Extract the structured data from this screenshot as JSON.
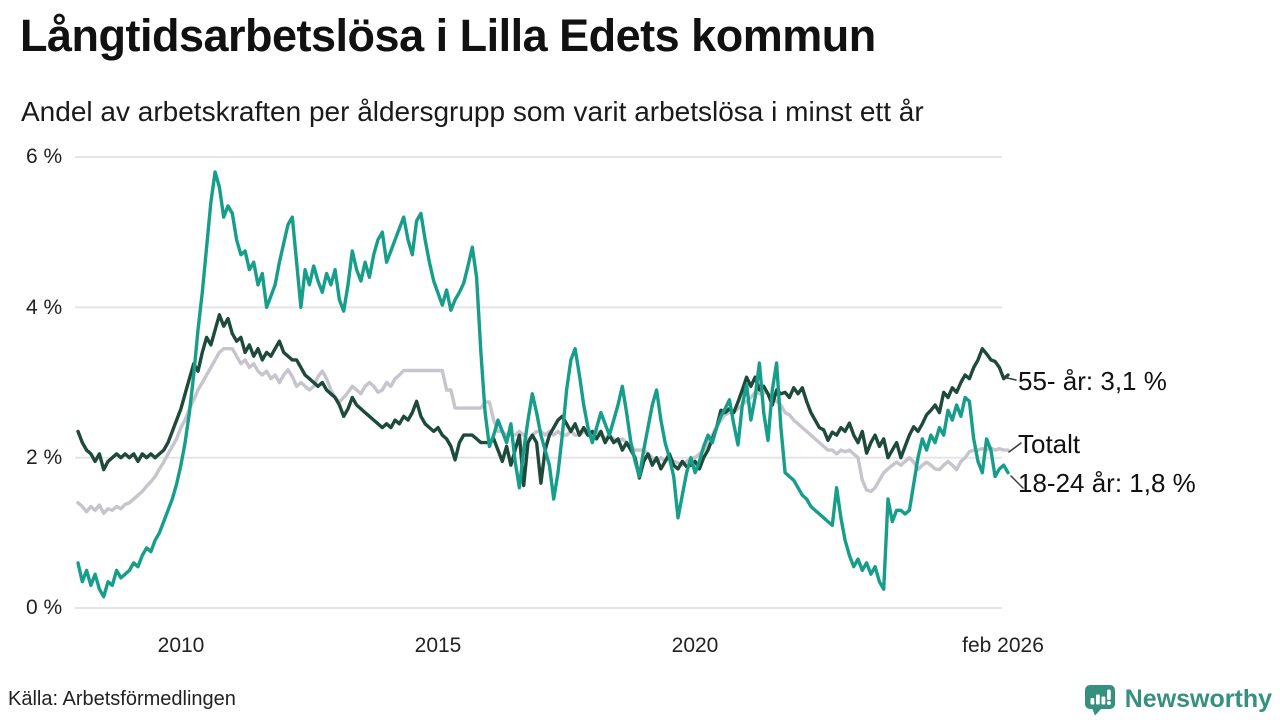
{
  "header": {
    "title": "Långtidsarbetslösa i Lilla Edets kommun",
    "subtitle": "Andel av arbetskraften per åldersgrupp som varit arbetslösa i minst ett år"
  },
  "footer": {
    "source": "Källa: Arbetsförmedlingen",
    "brand": "Newsworthy"
  },
  "colors": {
    "teal_18_24": "#179e8b",
    "dark_green_55": "#1e4a3c",
    "gray_totalt": "#c6c5ce",
    "brand_teal": "#35907f",
    "gridline": "#e3e3e3"
  },
  "chart_data": {
    "type": "line",
    "title": "Långtidsarbetslösa i Lilla Edets kommun",
    "subtitle": "Andel av arbetskraften per åldersgrupp som varit arbetslösa i minst ett år",
    "unit": "% av arbetskraften",
    "x_unit": "month",
    "x_range": [
      "2008-01",
      "2026-02"
    ],
    "ylim": [
      0,
      6
    ],
    "grid": "horizontal",
    "legend_position": "right-annotations",
    "y_gridline_values": [
      0,
      2,
      4,
      6
    ],
    "y_tick_labels": [
      "6 %",
      "4 %",
      "2 %",
      "0 %"
    ],
    "x_tick_labels": [
      "2010",
      "2015",
      "2020",
      "feb 2026"
    ],
    "annotations": [
      {
        "label": "55- år: 3,1 %"
      },
      {
        "label": "Totalt"
      },
      {
        "label": "18-24 år: 1,8 %"
      }
    ],
    "series": [
      {
        "id": "totalt",
        "name": "Totalt",
        "color": "#c6c5ce",
        "last_value": 2.1,
        "values": [
          1.4,
          1.35,
          1.28,
          1.35,
          1.3,
          1.37,
          1.26,
          1.32,
          1.3,
          1.35,
          1.32,
          1.38,
          1.4,
          1.45,
          1.5,
          1.55,
          1.62,
          1.68,
          1.75,
          1.85,
          1.94,
          2.05,
          2.15,
          2.25,
          2.4,
          2.5,
          2.65,
          2.77,
          2.9,
          3.0,
          3.1,
          3.2,
          3.3,
          3.4,
          3.45,
          3.45,
          3.45,
          3.35,
          3.25,
          3.3,
          3.2,
          3.25,
          3.15,
          3.1,
          3.15,
          3.05,
          3.1,
          3.0,
          3.1,
          3.17,
          3.08,
          2.95,
          3.0,
          2.95,
          2.9,
          2.95,
          3.08,
          3.15,
          3.05,
          2.9,
          2.8,
          2.74,
          2.8,
          2.87,
          2.95,
          2.9,
          2.85,
          2.95,
          3.0,
          2.95,
          2.87,
          2.9,
          3.0,
          2.95,
          3.05,
          3.1,
          3.16,
          3.16,
          3.16,
          3.16,
          3.16,
          3.16,
          3.16,
          3.16,
          3.16,
          3.16,
          2.9,
          2.9,
          2.66,
          2.66,
          2.66,
          2.66,
          2.66,
          2.66,
          2.66,
          2.74,
          2.74,
          2.5,
          2.35,
          2.35,
          2.3,
          2.3,
          2.3,
          2.35,
          2.3,
          2.23,
          2.3,
          2.35,
          2.35,
          2.3,
          2.35,
          2.3,
          2.35,
          2.3,
          2.3,
          2.35,
          2.3,
          2.3,
          2.35,
          2.3,
          2.3,
          2.35,
          2.3,
          2.25,
          2.3,
          2.25,
          2.2,
          2.25,
          2.2,
          2.15,
          2.1,
          2.1,
          2.1,
          2.05,
          2.0,
          1.95,
          2.0,
          1.95,
          2.0,
          1.95,
          1.93,
          1.9,
          1.95,
          1.99,
          2.0,
          2.05,
          2.1,
          2.2,
          2.3,
          2.41,
          2.5,
          2.57,
          2.6,
          2.6,
          2.65,
          2.7,
          2.75,
          2.8,
          2.87,
          2.85,
          2.87,
          2.85,
          2.8,
          2.75,
          2.7,
          2.6,
          2.57,
          2.5,
          2.45,
          2.4,
          2.35,
          2.3,
          2.25,
          2.2,
          2.15,
          2.1,
          2.1,
          2.05,
          2.1,
          2.08,
          2.1,
          2.05,
          2.0,
          1.7,
          1.57,
          1.55,
          1.6,
          1.7,
          1.8,
          1.85,
          1.9,
          1.94,
          1.9,
          1.95,
          2.0,
          1.94,
          1.84,
          1.9,
          1.94,
          1.9,
          1.85,
          1.84,
          1.9,
          1.95,
          1.9,
          1.84,
          1.95,
          2.0,
          2.08,
          2.1,
          2.1,
          2.12,
          2.1,
          2.13,
          2.1,
          2.12,
          2.1,
          2.1
        ]
      },
      {
        "id": "55-ar",
        "name": "55- år",
        "color": "#1e4a3c",
        "last_value": 3.1,
        "values": [
          2.35,
          2.2,
          2.1,
          2.05,
          1.95,
          2.05,
          1.84,
          1.95,
          2.0,
          2.05,
          2.0,
          2.05,
          2.0,
          2.05,
          1.95,
          2.05,
          2.0,
          2.05,
          2.0,
          2.05,
          2.1,
          2.2,
          2.35,
          2.5,
          2.65,
          2.85,
          3.05,
          3.25,
          3.15,
          3.4,
          3.6,
          3.5,
          3.7,
          3.9,
          3.75,
          3.85,
          3.65,
          3.55,
          3.6,
          3.4,
          3.5,
          3.35,
          3.45,
          3.3,
          3.4,
          3.35,
          3.45,
          3.55,
          3.4,
          3.35,
          3.3,
          3.3,
          3.2,
          3.1,
          3.05,
          3.0,
          2.95,
          3.0,
          2.9,
          2.85,
          2.8,
          2.7,
          2.55,
          2.65,
          2.8,
          2.7,
          2.65,
          2.6,
          2.55,
          2.5,
          2.45,
          2.4,
          2.45,
          2.4,
          2.5,
          2.45,
          2.55,
          2.5,
          2.6,
          2.75,
          2.55,
          2.45,
          2.4,
          2.35,
          2.4,
          2.3,
          2.25,
          2.15,
          1.97,
          2.2,
          2.3,
          2.3,
          2.3,
          2.25,
          2.2,
          2.2,
          2.2,
          2.25,
          2.1,
          1.95,
          2.15,
          1.9,
          2.1,
          2.3,
          1.63,
          2.2,
          2.3,
          2.2,
          1.66,
          2.1,
          2.3,
          2.4,
          2.5,
          2.55,
          2.45,
          2.35,
          2.45,
          2.3,
          2.4,
          2.3,
          2.35,
          2.25,
          2.35,
          2.2,
          2.3,
          2.2,
          2.25,
          2.1,
          2.2,
          2.1,
          2.0,
          1.73,
          1.95,
          2.05,
          1.9,
          2.0,
          1.85,
          1.95,
          2.05,
          1.9,
          1.85,
          1.95,
          1.88,
          1.9,
          1.95,
          1.85,
          2.0,
          2.1,
          2.25,
          2.4,
          2.63,
          2.6,
          2.65,
          2.6,
          2.74,
          2.9,
          3.07,
          2.95,
          3.07,
          2.9,
          2.95,
          2.85,
          2.7,
          2.9,
          2.85,
          2.87,
          2.8,
          2.93,
          2.85,
          2.93,
          2.75,
          2.6,
          2.5,
          2.4,
          2.37,
          2.23,
          2.34,
          2.3,
          2.4,
          2.35,
          2.46,
          2.3,
          2.2,
          2.35,
          2.06,
          2.2,
          2.3,
          2.15,
          2.25,
          2.0,
          2.1,
          2.2,
          2.0,
          2.15,
          2.3,
          2.41,
          2.35,
          2.45,
          2.57,
          2.63,
          2.7,
          2.6,
          2.87,
          2.8,
          2.93,
          2.87,
          3.0,
          3.1,
          3.05,
          3.2,
          3.3,
          3.45,
          3.38,
          3.3,
          3.28,
          3.2,
          3.05,
          3.1
        ]
      },
      {
        "id": "18-24-ar",
        "name": "18-24 år",
        "color": "#179e8b",
        "last_value": 1.8,
        "values": [
          0.6,
          0.35,
          0.5,
          0.3,
          0.45,
          0.25,
          0.15,
          0.35,
          0.3,
          0.5,
          0.4,
          0.45,
          0.5,
          0.6,
          0.55,
          0.7,
          0.8,
          0.75,
          0.9,
          1.0,
          1.15,
          1.3,
          1.45,
          1.65,
          1.9,
          2.2,
          2.6,
          3.1,
          3.7,
          4.2,
          4.8,
          5.4,
          5.8,
          5.6,
          5.2,
          5.35,
          5.25,
          4.9,
          4.7,
          4.75,
          4.5,
          4.6,
          4.3,
          4.45,
          4.0,
          4.15,
          4.3,
          4.6,
          4.85,
          5.1,
          5.2,
          4.6,
          4.0,
          4.5,
          4.3,
          4.55,
          4.35,
          4.2,
          4.45,
          4.3,
          4.5,
          4.1,
          3.95,
          4.3,
          4.75,
          4.5,
          4.35,
          4.6,
          4.4,
          4.7,
          4.9,
          5.0,
          4.6,
          4.75,
          4.9,
          5.05,
          5.2,
          4.9,
          4.7,
          5.15,
          5.25,
          4.9,
          4.6,
          4.35,
          4.19,
          4.03,
          4.23,
          3.96,
          4.1,
          4.2,
          4.32,
          4.55,
          4.8,
          4.4,
          3.4,
          2.6,
          2.15,
          2.3,
          2.5,
          2.35,
          2.2,
          2.45,
          1.95,
          1.6,
          2.1,
          2.5,
          2.85,
          2.6,
          2.3,
          2.1,
          1.9,
          1.45,
          1.8,
          2.3,
          2.9,
          3.3,
          3.45,
          3.1,
          2.7,
          2.4,
          2.2,
          2.4,
          2.6,
          2.45,
          2.3,
          2.5,
          2.7,
          2.95,
          2.6,
          2.2,
          1.95,
          1.75,
          2.1,
          2.4,
          2.7,
          2.9,
          2.5,
          2.2,
          2.0,
          1.75,
          1.2,
          1.5,
          1.8,
          2.0,
          1.8,
          1.95,
          2.15,
          2.3,
          2.2,
          2.4,
          2.55,
          2.65,
          2.77,
          2.45,
          2.17,
          2.7,
          2.97,
          2.5,
          2.8,
          3.26,
          2.6,
          2.23,
          2.9,
          3.26,
          2.4,
          1.8,
          1.75,
          1.7,
          1.6,
          1.5,
          1.45,
          1.35,
          1.3,
          1.25,
          1.2,
          1.15,
          1.1,
          1.6,
          1.2,
          0.9,
          0.7,
          0.55,
          0.65,
          0.5,
          0.6,
          0.45,
          0.55,
          0.35,
          0.25,
          1.45,
          1.15,
          1.3,
          1.3,
          1.25,
          1.3,
          1.65,
          2.0,
          2.25,
          2.1,
          2.3,
          2.2,
          2.4,
          2.3,
          2.63,
          2.5,
          2.7,
          2.55,
          2.8,
          2.75,
          2.25,
          1.95,
          1.8,
          2.25,
          2.1,
          1.75,
          1.85,
          1.9,
          1.8
        ]
      }
    ]
  }
}
